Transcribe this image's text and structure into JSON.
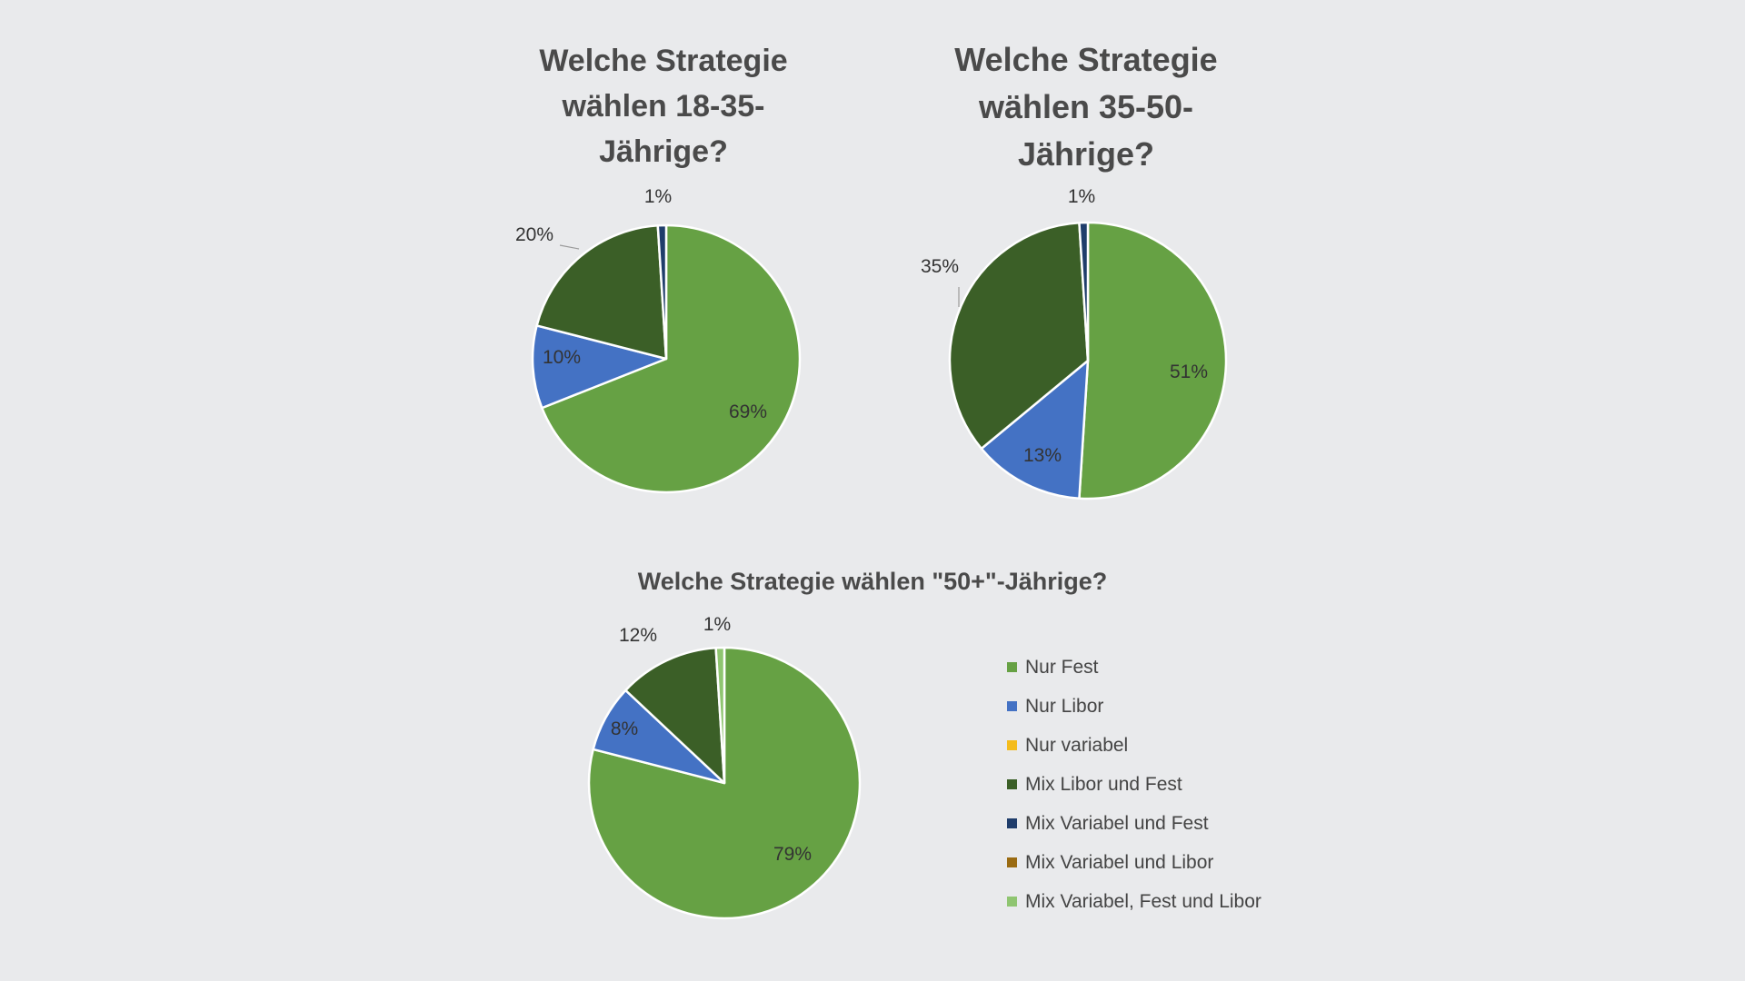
{
  "colors": {
    "Nur Fest": "#66a144",
    "Nur Libor": "#4472c4",
    "Nur variabel": "#f4bc1c",
    "Mix Libor und Fest": "#3b5f27",
    "Mix Variabel und Fest": "#1f3d6b",
    "Mix Variabel und Libor": "#9a6b12",
    "Mix Variabel, Fest und Libor": "#8fc571"
  },
  "legend": [
    "Nur Fest",
    "Nur Libor",
    "Nur variabel",
    "Mix Libor und Fest",
    "Mix Variabel und Fest",
    "Mix Variabel und Libor",
    "Mix Variabel, Fest und Libor"
  ],
  "chart_data": [
    {
      "type": "pie",
      "title": "Welche Strategie wählen 18-35-Jährige?",
      "categories": [
        "Nur Fest",
        "Nur Libor",
        "Mix Libor und Fest",
        "Mix Variabel und Fest"
      ],
      "values": [
        69,
        10,
        20,
        1
      ],
      "labels": [
        "69%",
        "10%",
        "20%",
        "1%"
      ]
    },
    {
      "type": "pie",
      "title": "Welche Strategie wählen 35-50-Jährige?",
      "categories": [
        "Nur Fest",
        "Nur Libor",
        "Mix Libor und Fest",
        "Mix Variabel und Fest"
      ],
      "values": [
        51,
        13,
        35,
        1
      ],
      "labels": [
        "51%",
        "13%",
        "35%",
        "1%"
      ]
    },
    {
      "type": "pie",
      "title": "Welche Strategie wählen \"50+\"-Jährige?",
      "categories": [
        "Nur Fest",
        "Nur Libor",
        "Mix Libor und Fest",
        "Mix Variabel, Fest und Libor"
      ],
      "values": [
        79,
        8,
        12,
        1
      ],
      "labels": [
        "79%",
        "8%",
        "12%",
        "1%"
      ]
    }
  ]
}
